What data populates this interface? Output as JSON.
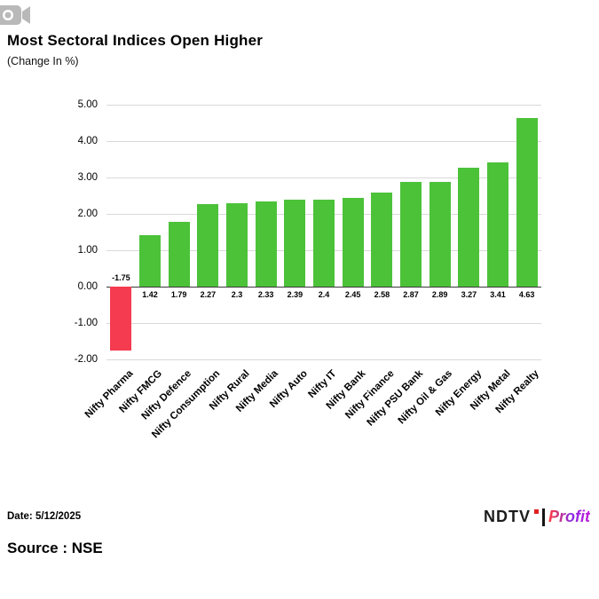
{
  "page": {
    "title": "Most Sectoral Indices Open Higher",
    "subtitle": "(Change In %)",
    "date_label": "Date: 5/12/2025",
    "source_label": "Source : NSE"
  },
  "logo": {
    "ndtv": "NDTV",
    "profit": "Profit"
  },
  "chart_data": {
    "type": "bar",
    "title": "Most Sectoral Indices Open Higher",
    "subtitle": "(Change In %)",
    "categories": [
      "Nifty Pharma",
      "Nifty FMCG",
      "Nifty Defence",
      "Nifty Consumption",
      "Nifty Rural",
      "Nifty Media",
      "Nifty Auto",
      "Nifty IT",
      "Nifty Bank",
      "Nifty Finance",
      "Nifty PSU Bank",
      "Nifty Oil & Gas",
      "Nifty Energy",
      "Nifty Metal",
      "Nifty Realty"
    ],
    "values": [
      -1.75,
      1.42,
      1.79,
      2.27,
      2.3,
      2.33,
      2.39,
      2.4,
      2.45,
      2.58,
      2.87,
      2.89,
      3.27,
      3.41,
      4.63
    ],
    "value_labels": [
      "-1.75",
      "1.42",
      "1.79",
      "2.27",
      "2.3",
      "2.33",
      "2.39",
      "2.4",
      "2.45",
      "2.58",
      "2.87",
      "2.89",
      "3.27",
      "3.41",
      "4.63"
    ],
    "xlabel": "",
    "ylabel": "",
    "ylim": [
      -2,
      5
    ],
    "y_ticks": [
      "5.00",
      "4.00",
      "3.00",
      "2.00",
      "1.00",
      "0.00",
      "-1.00",
      "-2.00"
    ],
    "grid": true,
    "legend": "none",
    "colors": {
      "positive": "#4CC239",
      "negative": "#F43B4F"
    }
  }
}
